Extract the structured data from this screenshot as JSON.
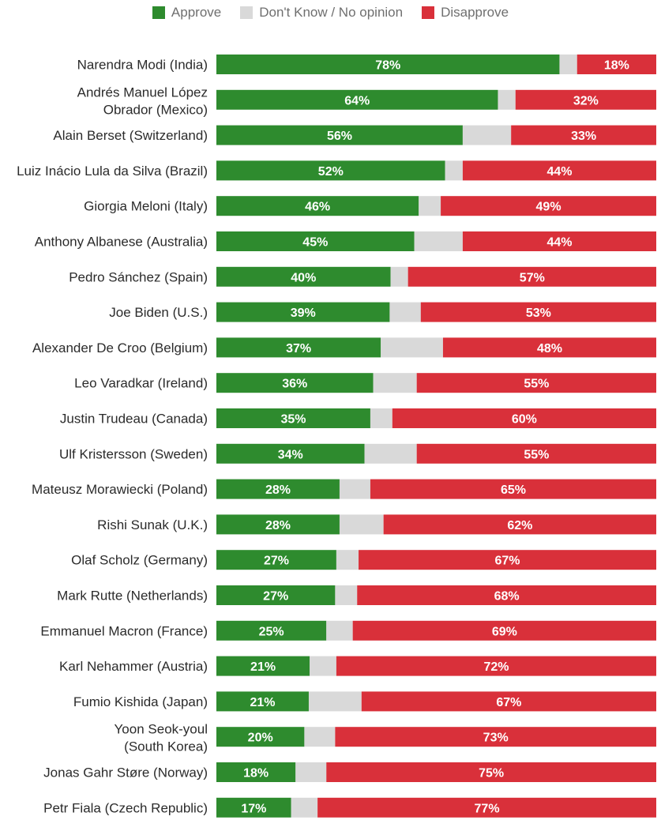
{
  "chart_data": {
    "type": "bar",
    "orientation": "horizontal-stacked",
    "legend_position": "top-center",
    "xlim": [
      0,
      100
    ],
    "series": [
      {
        "name": "Approve",
        "color": "#2e8b2e"
      },
      {
        "name": "Don't Know / No opinion",
        "color": "#d9d9d9"
      },
      {
        "name": "Disapprove",
        "color": "#d9303a"
      }
    ],
    "rows": [
      {
        "label": [
          "Narendra Modi (India)"
        ],
        "approve": 78,
        "unknown": 4,
        "disapprove": 18
      },
      {
        "label": [
          "Andrés Manuel López",
          "Obrador (Mexico)"
        ],
        "approve": 64,
        "unknown": 4,
        "disapprove": 32
      },
      {
        "label": [
          "Alain Berset (Switzerland)"
        ],
        "approve": 56,
        "unknown": 11,
        "disapprove": 33
      },
      {
        "label": [
          "Luiz Inácio Lula da Silva (Brazil)"
        ],
        "approve": 52,
        "unknown": 4,
        "disapprove": 44
      },
      {
        "label": [
          "Giorgia Meloni (Italy)"
        ],
        "approve": 46,
        "unknown": 5,
        "disapprove": 49
      },
      {
        "label": [
          "Anthony Albanese (Australia)"
        ],
        "approve": 45,
        "unknown": 11,
        "disapprove": 44
      },
      {
        "label": [
          "Pedro Sánchez (Spain)"
        ],
        "approve": 40,
        "unknown": 4,
        "disapprove": 57
      },
      {
        "label": [
          "Joe Biden (U.S.)"
        ],
        "approve": 39,
        "unknown": 7,
        "disapprove": 53
      },
      {
        "label": [
          "Alexander De Croo (Belgium)"
        ],
        "approve": 37,
        "unknown": 14,
        "disapprove": 48
      },
      {
        "label": [
          "Leo Varadkar (Ireland)"
        ],
        "approve": 36,
        "unknown": 10,
        "disapprove": 55
      },
      {
        "label": [
          "Justin Trudeau (Canada)"
        ],
        "approve": 35,
        "unknown": 5,
        "disapprove": 60
      },
      {
        "label": [
          "Ulf Kristersson (Sweden)"
        ],
        "approve": 34,
        "unknown": 12,
        "disapprove": 55
      },
      {
        "label": [
          "Mateusz Morawiecki (Poland)"
        ],
        "approve": 28,
        "unknown": 7,
        "disapprove": 65
      },
      {
        "label": [
          "Rishi Sunak (U.K.)"
        ],
        "approve": 28,
        "unknown": 10,
        "disapprove": 62
      },
      {
        "label": [
          "Olaf Scholz (Germany)"
        ],
        "approve": 27,
        "unknown": 5,
        "disapprove": 67
      },
      {
        "label": [
          "Mark Rutte (Netherlands)"
        ],
        "approve": 27,
        "unknown": 5,
        "disapprove": 68
      },
      {
        "label": [
          "Emmanuel Macron (France)"
        ],
        "approve": 25,
        "unknown": 6,
        "disapprove": 69
      },
      {
        "label": [
          "Karl Nehammer (Austria)"
        ],
        "approve": 21,
        "unknown": 6,
        "disapprove": 72
      },
      {
        "label": [
          "Fumio Kishida (Japan)"
        ],
        "approve": 21,
        "unknown": 12,
        "disapprove": 67
      },
      {
        "label": [
          "Yoon Seok-youl",
          "(South Korea)"
        ],
        "approve": 20,
        "unknown": 7,
        "disapprove": 73
      },
      {
        "label": [
          "Jonas Gahr Støre (Norway)"
        ],
        "approve": 18,
        "unknown": 7,
        "disapprove": 75
      },
      {
        "label": [
          "Petr Fiala (Czech Republic)"
        ],
        "approve": 17,
        "unknown": 6,
        "disapprove": 77
      }
    ]
  }
}
